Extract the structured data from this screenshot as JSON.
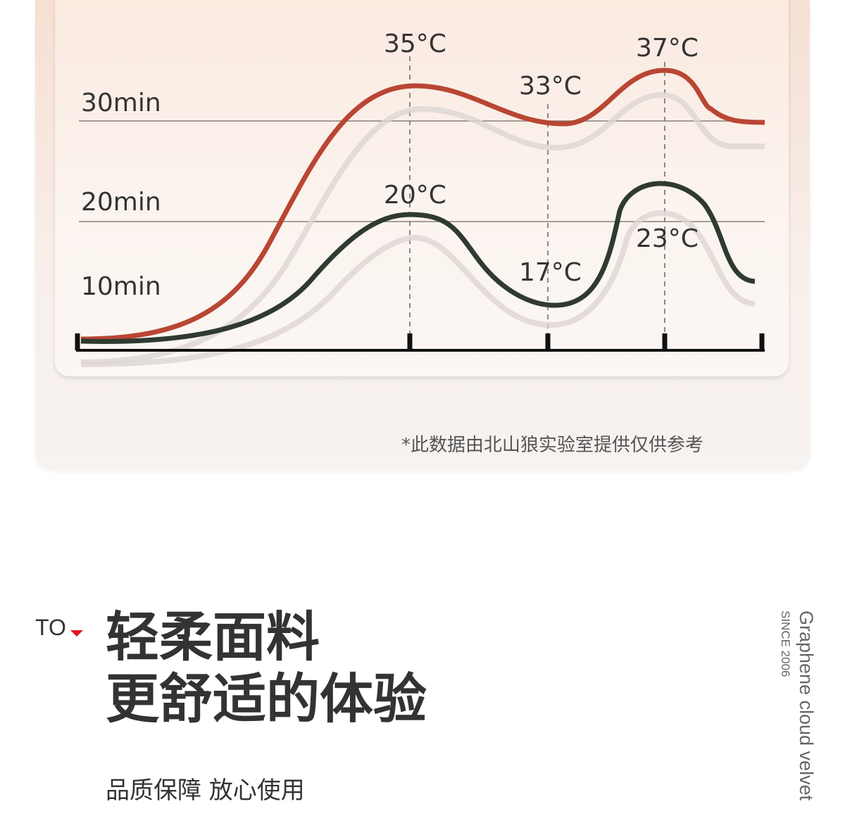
{
  "chart_data": {
    "type": "line",
    "y_labels": [
      "30min",
      "20min",
      "10min"
    ],
    "series": [
      {
        "color": "#b94633",
        "annotations": [
          "35°C",
          "33°C",
          "37°C"
        ]
      },
      {
        "color": "#2f3a30",
        "annotations": [
          "20°C",
          "17°C",
          "23°C"
        ]
      }
    ],
    "grid": "horizontal reference lines at 30min and 20min",
    "note": "*此数据由北山狼实验室提供仅供参考"
  },
  "section": {
    "to_label": "TO",
    "title_line1": "轻柔面料",
    "title_line2": "更舒适的体验",
    "subtitle": "品质保障 放心使用",
    "since": "SINCE 2006",
    "brand_en": "Graphene cloud velvet"
  },
  "colors": {
    "accent": "#e8141c",
    "red_curve": "#b94633",
    "green_curve": "#2f3a30"
  }
}
